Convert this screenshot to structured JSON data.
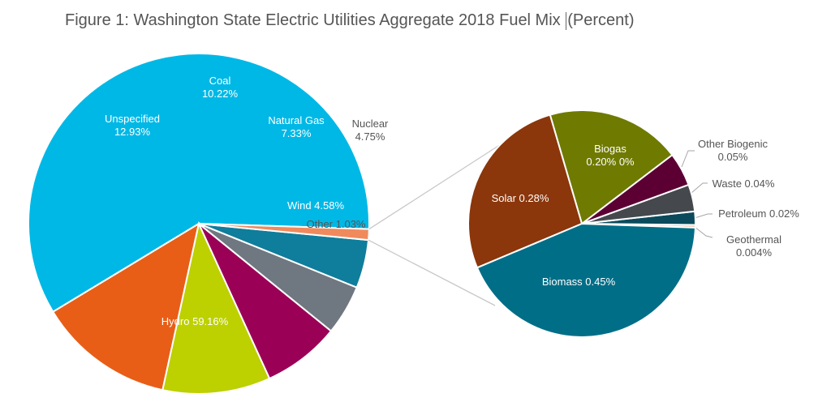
{
  "chart_data": [
    {
      "type": "pie",
      "title": "Figure 1: Washington State Electric Utilities Aggregate 2018 Fuel Mix",
      "title_suffix": "(Percent)",
      "slices": [
        {
          "label": "Hydro 59.16%",
          "value": 59.16,
          "color": "#00B8E6"
        },
        {
          "label": "Unspecified",
          "value_label": "12.93%",
          "value": 12.93,
          "color": "#E85E17"
        },
        {
          "label": "Coal",
          "value_label": "10.22%",
          "value": 10.22,
          "color": "#BDD000"
        },
        {
          "label": "Natural Gas",
          "value_label": "7.33%",
          "value": 7.33,
          "color": "#9B0057"
        },
        {
          "label": "Nuclear",
          "value_label": "4.75%",
          "value": 4.75,
          "color": "#6F7780"
        },
        {
          "label": "Wind 4.58%",
          "value": 4.58,
          "color": "#0F7D9C"
        },
        {
          "label": "Other 1.03%",
          "value": 1.03,
          "color": "#F08A5D"
        }
      ]
    },
    {
      "type": "pie",
      "breakdown_of": "Other 1.03%",
      "slices": [
        {
          "label": "Biomass 0.45%",
          "value": 0.45,
          "color": "#006E87"
        },
        {
          "label": "Solar 0.28%",
          "value": 0.28,
          "color": "#8B360B"
        },
        {
          "label": "Biogas",
          "value_label": "0.20% 0%",
          "value": 0.2,
          "color": "#6F7A00"
        },
        {
          "label": "Other Biogenic",
          "value_label": "0.05%",
          "value": 0.05,
          "color": "#5C0034"
        },
        {
          "label": "Waste 0.04%",
          "value": 0.04,
          "color": "#45494E"
        },
        {
          "label": "Petroleum 0.02%",
          "value": 0.02,
          "color": "#0A4A5C"
        },
        {
          "label": "Geothermal",
          "value_label": "0.004%",
          "value": 0.004,
          "color": "#F5B899"
        }
      ]
    }
  ]
}
